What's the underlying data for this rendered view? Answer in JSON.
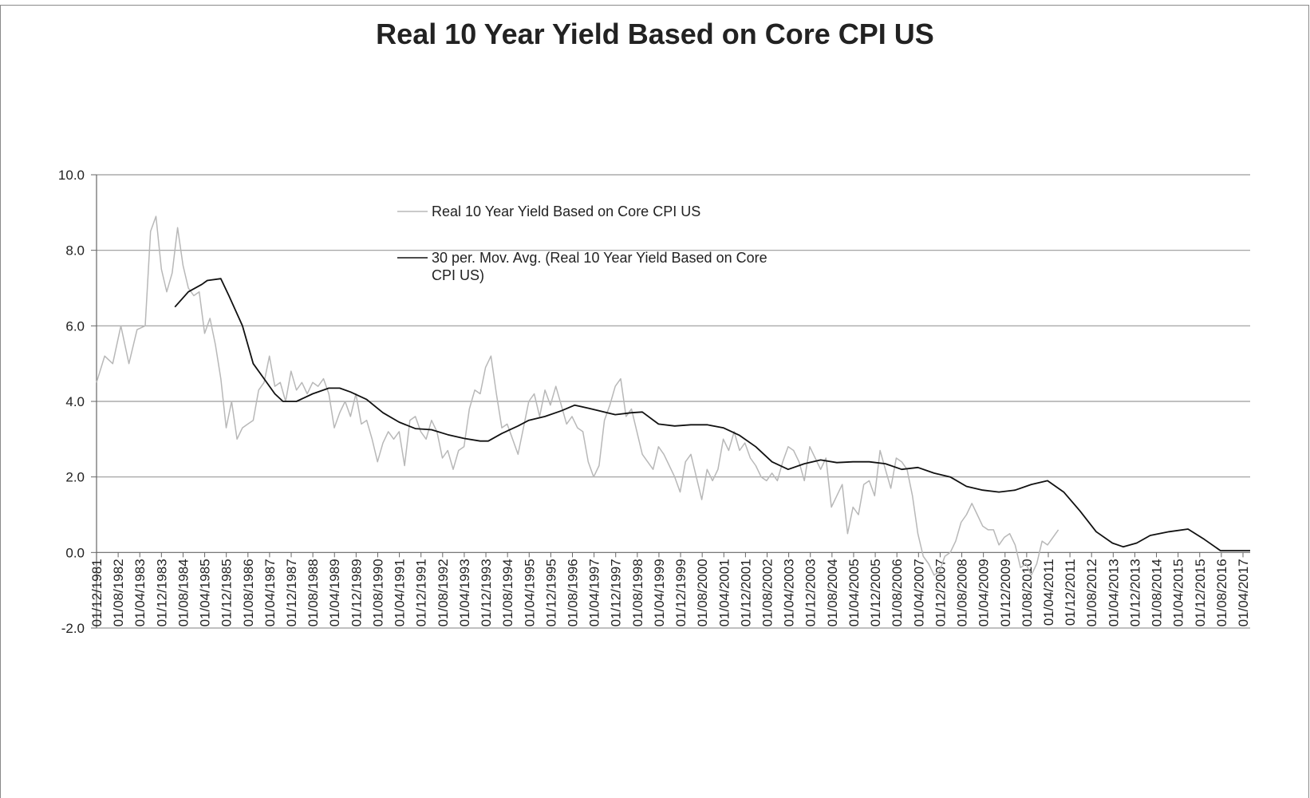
{
  "chart_data": {
    "type": "line",
    "title": "Real 10 Year Yield Based on Core CPI US",
    "xlabel": "",
    "ylabel": "",
    "ylim": [
      -2.0,
      10.0
    ],
    "yticks": [
      "10.0",
      "8.0",
      "6.0",
      "4.0",
      "2.0",
      "0.0",
      "-2.0"
    ],
    "grid": true,
    "legend_position": "top-center",
    "legend": [
      "Real 10 Year Yield Based on Core CPI US",
      "30 per. Mov. Avg. (Real 10 Year Yield Based on Core CPI US)"
    ],
    "legend_lines": {
      "series_a": "Real 10 Year Yield Based on Core CPI US",
      "series_b_line1": "30 per. Mov. Avg. (Real 10 Year Yield Based on Core",
      "series_b_line2": "CPI US)"
    },
    "x_tick_labels": [
      "01/12/1981",
      "01/08/1982",
      "01/04/1983",
      "01/12/1983",
      "01/08/1984",
      "01/04/1985",
      "01/12/1985",
      "01/08/1986",
      "01/04/1987",
      "01/12/1987",
      "01/08/1988",
      "01/04/1989",
      "01/12/1989",
      "01/08/1990",
      "01/04/1991",
      "01/12/1991",
      "01/08/1992",
      "01/04/1993",
      "01/12/1993",
      "01/08/1994",
      "01/04/1995",
      "01/12/1995",
      "01/08/1996",
      "01/04/1997",
      "01/12/1997",
      "01/08/1998",
      "01/04/1999",
      "01/12/1999",
      "01/08/2000",
      "01/04/2001",
      "01/12/2001",
      "01/08/2002",
      "01/04/2003",
      "01/12/2003",
      "01/08/2004",
      "01/04/2005",
      "01/12/2005",
      "01/08/2006",
      "01/04/2007",
      "01/12/2007",
      "01/08/2008",
      "01/04/2009",
      "01/12/2009",
      "01/08/2010",
      "01/04/2011",
      "01/12/2011",
      "01/08/2012",
      "01/04/2013",
      "01/12/2013",
      "01/08/2014",
      "01/04/2015",
      "01/12/2015",
      "01/08/2016",
      "01/04/2017"
    ],
    "x_range": [
      "1981-12",
      "2017-07"
    ],
    "series": [
      {
        "name": "Real 10 Year Yield Based on Core CPI US",
        "color": "#b8b8b8",
        "points": [
          [
            "1981-12",
            4.5
          ],
          [
            "1982-03",
            5.2
          ],
          [
            "1982-06",
            5.0
          ],
          [
            "1982-09",
            6.0
          ],
          [
            "1982-12",
            5.0
          ],
          [
            "1983-03",
            5.9
          ],
          [
            "1983-06",
            6.0
          ],
          [
            "1983-08",
            8.5
          ],
          [
            "1983-10",
            8.9
          ],
          [
            "1983-12",
            7.5
          ],
          [
            "1984-02",
            6.9
          ],
          [
            "1984-04",
            7.4
          ],
          [
            "1984-06",
            8.6
          ],
          [
            "1984-08",
            7.6
          ],
          [
            "1984-10",
            7.0
          ],
          [
            "1984-12",
            6.8
          ],
          [
            "1985-02",
            6.9
          ],
          [
            "1985-04",
            5.8
          ],
          [
            "1985-06",
            6.2
          ],
          [
            "1985-08",
            5.5
          ],
          [
            "1985-10",
            4.6
          ],
          [
            "1985-12",
            3.3
          ],
          [
            "1986-02",
            4.0
          ],
          [
            "1986-04",
            3.0
          ],
          [
            "1986-06",
            3.3
          ],
          [
            "1986-08",
            3.4
          ],
          [
            "1986-10",
            3.5
          ],
          [
            "1986-12",
            4.3
          ],
          [
            "1987-02",
            4.5
          ],
          [
            "1987-04",
            5.2
          ],
          [
            "1987-06",
            4.4
          ],
          [
            "1987-08",
            4.5
          ],
          [
            "1987-10",
            4.0
          ],
          [
            "1987-12",
            4.8
          ],
          [
            "1988-02",
            4.3
          ],
          [
            "1988-04",
            4.5
          ],
          [
            "1988-06",
            4.2
          ],
          [
            "1988-08",
            4.5
          ],
          [
            "1988-10",
            4.4
          ],
          [
            "1988-12",
            4.6
          ],
          [
            "1989-02",
            4.2
          ],
          [
            "1989-04",
            3.3
          ],
          [
            "1989-06",
            3.7
          ],
          [
            "1989-08",
            4.0
          ],
          [
            "1989-10",
            3.6
          ],
          [
            "1989-12",
            4.2
          ],
          [
            "1990-02",
            3.4
          ],
          [
            "1990-04",
            3.5
          ],
          [
            "1990-06",
            3.0
          ],
          [
            "1990-08",
            2.4
          ],
          [
            "1990-10",
            2.9
          ],
          [
            "1990-12",
            3.2
          ],
          [
            "1991-02",
            3.0
          ],
          [
            "1991-04",
            3.2
          ],
          [
            "1991-06",
            2.3
          ],
          [
            "1991-08",
            3.5
          ],
          [
            "1991-10",
            3.6
          ],
          [
            "1991-12",
            3.2
          ],
          [
            "1992-02",
            3.0
          ],
          [
            "1992-04",
            3.5
          ],
          [
            "1992-06",
            3.2
          ],
          [
            "1992-08",
            2.5
          ],
          [
            "1992-10",
            2.7
          ],
          [
            "1992-12",
            2.2
          ],
          [
            "1993-02",
            2.7
          ],
          [
            "1993-04",
            2.8
          ],
          [
            "1993-06",
            3.8
          ],
          [
            "1993-08",
            4.3
          ],
          [
            "1993-10",
            4.2
          ],
          [
            "1993-12",
            4.9
          ],
          [
            "1994-02",
            5.2
          ],
          [
            "1994-04",
            4.2
          ],
          [
            "1994-06",
            3.3
          ],
          [
            "1994-08",
            3.4
          ],
          [
            "1994-10",
            3.0
          ],
          [
            "1994-12",
            2.6
          ],
          [
            "1995-02",
            3.3
          ],
          [
            "1995-04",
            4.0
          ],
          [
            "1995-06",
            4.2
          ],
          [
            "1995-08",
            3.6
          ],
          [
            "1995-10",
            4.3
          ],
          [
            "1995-12",
            3.9
          ],
          [
            "1996-02",
            4.4
          ],
          [
            "1996-04",
            3.9
          ],
          [
            "1996-06",
            3.4
          ],
          [
            "1996-08",
            3.6
          ],
          [
            "1996-10",
            3.3
          ],
          [
            "1996-12",
            3.2
          ],
          [
            "1997-02",
            2.4
          ],
          [
            "1997-04",
            2.0
          ],
          [
            "1997-06",
            2.3
          ],
          [
            "1997-08",
            3.5
          ],
          [
            "1997-10",
            3.9
          ],
          [
            "1997-12",
            4.4
          ],
          [
            "1998-02",
            4.6
          ],
          [
            "1998-04",
            3.6
          ],
          [
            "1998-06",
            3.8
          ],
          [
            "1998-08",
            3.2
          ],
          [
            "1998-10",
            2.6
          ],
          [
            "1998-12",
            2.4
          ],
          [
            "1999-02",
            2.2
          ],
          [
            "1999-04",
            2.8
          ],
          [
            "1999-06",
            2.6
          ],
          [
            "1999-08",
            2.3
          ],
          [
            "1999-10",
            2.0
          ],
          [
            "1999-12",
            1.6
          ],
          [
            "2000-02",
            2.4
          ],
          [
            "2000-04",
            2.6
          ],
          [
            "2000-06",
            2.0
          ],
          [
            "2000-08",
            1.4
          ],
          [
            "2000-10",
            2.2
          ],
          [
            "2000-12",
            1.9
          ],
          [
            "2001-02",
            2.2
          ],
          [
            "2001-04",
            3.0
          ],
          [
            "2001-06",
            2.7
          ],
          [
            "2001-08",
            3.2
          ],
          [
            "2001-10",
            2.7
          ],
          [
            "2001-12",
            2.9
          ],
          [
            "2002-02",
            2.5
          ],
          [
            "2002-04",
            2.3
          ],
          [
            "2002-06",
            2.0
          ],
          [
            "2002-08",
            1.9
          ],
          [
            "2002-10",
            2.1
          ],
          [
            "2002-12",
            1.9
          ],
          [
            "2003-02",
            2.4
          ],
          [
            "2003-04",
            2.8
          ],
          [
            "2003-06",
            2.7
          ],
          [
            "2003-08",
            2.4
          ],
          [
            "2003-10",
            1.9
          ],
          [
            "2003-12",
            2.8
          ],
          [
            "2004-02",
            2.5
          ],
          [
            "2004-04",
            2.2
          ],
          [
            "2004-06",
            2.5
          ],
          [
            "2004-08",
            1.2
          ],
          [
            "2004-10",
            1.5
          ],
          [
            "2004-12",
            1.8
          ],
          [
            "2005-02",
            0.5
          ],
          [
            "2005-04",
            1.2
          ],
          [
            "2005-06",
            1.0
          ],
          [
            "2005-08",
            1.8
          ],
          [
            "2005-10",
            1.9
          ],
          [
            "2005-12",
            1.5
          ],
          [
            "2006-02",
            2.7
          ],
          [
            "2006-04",
            2.2
          ],
          [
            "2006-06",
            1.7
          ],
          [
            "2006-08",
            2.5
          ],
          [
            "2006-10",
            2.4
          ],
          [
            "2006-12",
            2.2
          ],
          [
            "2007-02",
            1.5
          ],
          [
            "2007-04",
            0.5
          ],
          [
            "2007-06",
            -0.1
          ],
          [
            "2007-08",
            -0.3
          ],
          [
            "2007-10",
            -0.6
          ],
          [
            "2007-12",
            -0.5
          ],
          [
            "2008-02",
            -0.1
          ],
          [
            "2008-04",
            0.0
          ],
          [
            "2008-06",
            0.3
          ],
          [
            "2008-08",
            0.8
          ],
          [
            "2008-10",
            1.0
          ],
          [
            "2008-12",
            1.3
          ],
          [
            "2009-02",
            1.0
          ],
          [
            "2009-04",
            0.7
          ],
          [
            "2009-06",
            0.6
          ],
          [
            "2009-08",
            0.6
          ],
          [
            "2009-10",
            0.2
          ],
          [
            "2009-12",
            0.4
          ],
          [
            "2010-02",
            0.5
          ],
          [
            "2010-04",
            0.2
          ],
          [
            "2010-06",
            -0.4
          ],
          [
            "2010-08",
            -0.3
          ],
          [
            "2010-10",
            -0.6
          ],
          [
            "2010-12",
            -0.3
          ],
          [
            "2011-02",
            0.3
          ],
          [
            "2011-04",
            0.2
          ],
          [
            "2011-06",
            0.4
          ],
          [
            "2011-08",
            0.6
          ]
        ]
      },
      {
        "name": "30 per. Mov. Avg. (Real 10 Year Yield Based on Core CPI US)",
        "color": "#111111",
        "points": [
          [
            "1984-05",
            6.5
          ],
          [
            "1984-10",
            6.9
          ],
          [
            "1985-03",
            7.1
          ],
          [
            "1985-05",
            7.2
          ],
          [
            "1985-10",
            7.25
          ],
          [
            "1986-01",
            6.8
          ],
          [
            "1986-06",
            6.0
          ],
          [
            "1986-10",
            5.0
          ],
          [
            "1987-02",
            4.6
          ],
          [
            "1987-06",
            4.2
          ],
          [
            "1987-09",
            4.0
          ],
          [
            "1988-02",
            4.0
          ],
          [
            "1988-08",
            4.2
          ],
          [
            "1989-02",
            4.35
          ],
          [
            "1989-06",
            4.35
          ],
          [
            "1989-10",
            4.25
          ],
          [
            "1990-04",
            4.05
          ],
          [
            "1990-10",
            3.7
          ],
          [
            "1991-04",
            3.45
          ],
          [
            "1991-10",
            3.28
          ],
          [
            "1992-04",
            3.25
          ],
          [
            "1992-10",
            3.12
          ],
          [
            "1993-04",
            3.02
          ],
          [
            "1993-10",
            2.95
          ],
          [
            "1994-01",
            2.95
          ],
          [
            "1994-06",
            3.15
          ],
          [
            "1994-12",
            3.35
          ],
          [
            "1995-04",
            3.5
          ],
          [
            "1995-10",
            3.6
          ],
          [
            "1996-04",
            3.75
          ],
          [
            "1996-09",
            3.9
          ],
          [
            "1997-02",
            3.82
          ],
          [
            "1997-06",
            3.75
          ],
          [
            "1997-12",
            3.65
          ],
          [
            "1998-06",
            3.7
          ],
          [
            "1998-10",
            3.72
          ],
          [
            "1999-04",
            3.4
          ],
          [
            "1999-10",
            3.35
          ],
          [
            "2000-04",
            3.38
          ],
          [
            "2000-10",
            3.38
          ],
          [
            "2001-04",
            3.3
          ],
          [
            "2001-10",
            3.1
          ],
          [
            "2002-04",
            2.8
          ],
          [
            "2002-10",
            2.4
          ],
          [
            "2003-04",
            2.2
          ],
          [
            "2003-10",
            2.35
          ],
          [
            "2004-04",
            2.45
          ],
          [
            "2004-10",
            2.38
          ],
          [
            "2005-04",
            2.4
          ],
          [
            "2005-10",
            2.4
          ],
          [
            "2006-04",
            2.35
          ],
          [
            "2006-10",
            2.2
          ],
          [
            "2007-04",
            2.25
          ],
          [
            "2007-10",
            2.1
          ],
          [
            "2008-04",
            2.0
          ],
          [
            "2008-10",
            1.75
          ],
          [
            "2009-04",
            1.65
          ],
          [
            "2009-10",
            1.6
          ],
          [
            "2010-04",
            1.65
          ],
          [
            "2010-10",
            1.8
          ],
          [
            "2011-04",
            1.9
          ],
          [
            "2011-10",
            1.6
          ],
          [
            "2012-04",
            1.1
          ],
          [
            "2012-10",
            0.55
          ],
          [
            "2013-04",
            0.25
          ],
          [
            "2013-08",
            0.15
          ],
          [
            "2014-01",
            0.25
          ],
          [
            "2014-06",
            0.45
          ],
          [
            "2015-01",
            0.55
          ],
          [
            "2015-08",
            0.62
          ],
          [
            "2016-02",
            0.35
          ],
          [
            "2016-08",
            0.05
          ],
          [
            "2017-01",
            0.05
          ],
          [
            "2017-07",
            0.05
          ]
        ]
      }
    ]
  }
}
